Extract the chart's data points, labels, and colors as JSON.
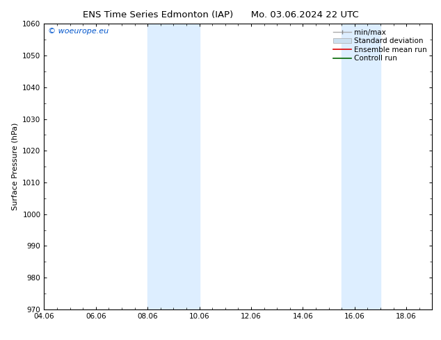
{
  "title_left": "ENS Time Series Edmonton (IAP)",
  "title_right": "Mo. 03.06.2024 22 UTC",
  "ylabel": "Surface Pressure (hPa)",
  "ylim": [
    970,
    1060
  ],
  "yticks": [
    970,
    980,
    990,
    1000,
    1010,
    1020,
    1030,
    1040,
    1050,
    1060
  ],
  "xlim_start": 4.06,
  "xlim_end": 19.06,
  "xtick_labels": [
    "04.06",
    "06.06",
    "08.06",
    "10.06",
    "12.06",
    "14.06",
    "16.06",
    "18.06"
  ],
  "xtick_positions": [
    4.06,
    6.06,
    8.06,
    10.06,
    12.06,
    14.06,
    16.06,
    18.06
  ],
  "shaded_bands": [
    {
      "x_start": 8.06,
      "x_end": 10.06
    },
    {
      "x_start": 15.56,
      "x_end": 17.06
    }
  ],
  "shade_color": "#ddeeff",
  "background_color": "#ffffff",
  "plot_bg_color": "#ffffff",
  "watermark_text": "© woeurope.eu",
  "watermark_color": "#0055cc",
  "tick_color": "#000000",
  "spine_color": "#000000",
  "title_fontsize": 9.5,
  "label_fontsize": 8,
  "tick_fontsize": 7.5,
  "legend_fontsize": 7.5,
  "watermark_fontsize": 8
}
